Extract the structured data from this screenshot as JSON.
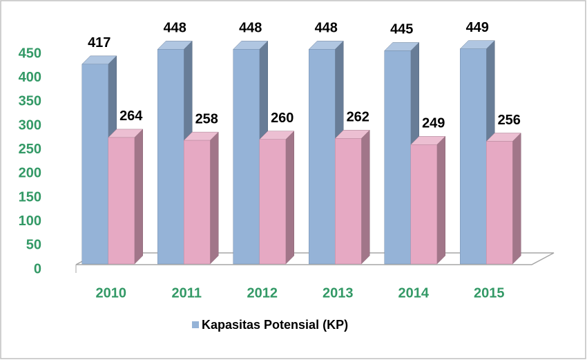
{
  "chart_data": {
    "type": "bar3d",
    "categories": [
      "2010",
      "2011",
      "2012",
      "2013",
      "2014",
      "2015"
    ],
    "series": [
      {
        "name": "Kapasitas Potensial (KP)",
        "color": "#95b3d7",
        "values": [
          417,
          448,
          448,
          448,
          445,
          449
        ]
      },
      {
        "color": "#e6a9c3",
        "values": [
          264,
          258,
          260,
          262,
          249,
          256
        ]
      }
    ],
    "ylim": [
      0,
      450
    ],
    "yticks": [
      0,
      50,
      100,
      150,
      200,
      250,
      300,
      350,
      400,
      450
    ],
    "data_labels": true,
    "legend": "bottom"
  }
}
